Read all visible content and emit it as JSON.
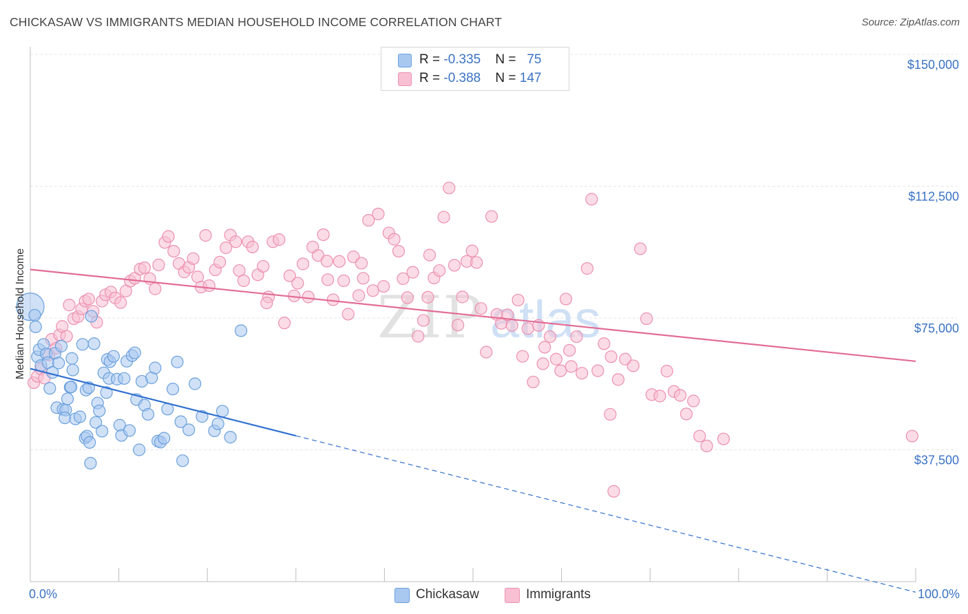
{
  "title": "CHICKASAW VS IMMIGRANTS MEDIAN HOUSEHOLD INCOME CORRELATION CHART",
  "source": "Source: ZipAtlas.com",
  "watermark": {
    "zip": "ZIP",
    "atlas": "atlas"
  },
  "legend": {
    "rows": [
      {
        "r_label": "R = ",
        "r_value": "-0.335",
        "n_label": "N = ",
        "n_value": "75"
      },
      {
        "r_label": "R = ",
        "r_value": "-0.388",
        "n_label": "N = ",
        "n_value": "147"
      }
    ]
  },
  "colors": {
    "chickasaw_fill": "#a9c8f0",
    "chickasaw_stroke": "#6a9fdc",
    "chickasaw_line": "#2f6fcf",
    "immigrants_fill": "#f8c0d2",
    "immigrants_stroke": "#ec8fb0",
    "immigrants_line": "#e26c94",
    "tick": "#3a72c4",
    "grid": "#e4e4e4"
  },
  "chart_data": {
    "type": "scatter",
    "title": "CHICKASAW VS IMMIGRANTS MEDIAN HOUSEHOLD INCOME CORRELATION CHART",
    "ylabel": "Median Household Income",
    "xlabel": "",
    "xlim": [
      0,
      100
    ],
    "ylim": [
      0,
      150000
    ],
    "x_tick_labels": [
      "0.0%",
      "100.0%"
    ],
    "y_ticks": [
      {
        "value": 37500,
        "label": "$37,500"
      },
      {
        "value": 75000,
        "label": "$75,000"
      },
      {
        "value": 112500,
        "label": "$112,500"
      },
      {
        "value": 150000,
        "label": "$150,000"
      }
    ],
    "grid": true,
    "legend_position": "top-center",
    "series": [
      {
        "name": "Chickasaw",
        "r": -0.335,
        "n": 75,
        "trend": {
          "x0": 0,
          "y0": 60600,
          "x1": 30,
          "y1": 41500,
          "dashed_to_x": 100,
          "dashed_to_y": -3000
        },
        "points": [
          [
            0,
            78200
          ],
          [
            0.5,
            75800
          ],
          [
            0.6,
            72500
          ],
          [
            0.8,
            64000
          ],
          [
            1,
            66000
          ],
          [
            1.2,
            61500
          ],
          [
            1.5,
            67500
          ],
          [
            1.8,
            64800
          ],
          [
            2,
            62300
          ],
          [
            2.2,
            55000
          ],
          [
            2.5,
            59500
          ],
          [
            2.8,
            65000
          ],
          [
            3,
            49500
          ],
          [
            3.2,
            62200
          ],
          [
            3.5,
            67000
          ],
          [
            3.7,
            49000
          ],
          [
            4,
            48800
          ],
          [
            4.2,
            52000
          ],
          [
            4.5,
            55300
          ],
          [
            4.7,
            63500
          ],
          [
            3.9,
            46600
          ],
          [
            4.6,
            55400
          ],
          [
            4.8,
            60200
          ],
          [
            5.1,
            46300
          ],
          [
            5.6,
            46900
          ],
          [
            5.9,
            67500
          ],
          [
            6.3,
            54500
          ],
          [
            6.6,
            55200
          ],
          [
            6.9,
            75500
          ],
          [
            7.2,
            67700
          ],
          [
            6.2,
            40900
          ],
          [
            6.4,
            41400
          ],
          [
            6.7,
            39600
          ],
          [
            6.8,
            33700
          ],
          [
            7.4,
            45300
          ],
          [
            7.6,
            50800
          ],
          [
            7.8,
            48600
          ],
          [
            8.1,
            42800
          ],
          [
            8.3,
            59400
          ],
          [
            8.6,
            53800
          ],
          [
            8.9,
            57800
          ],
          [
            8.7,
            63200
          ],
          [
            9,
            62600
          ],
          [
            9.4,
            64100
          ],
          [
            9.8,
            57600
          ],
          [
            10.1,
            44500
          ],
          [
            10.3,
            41600
          ],
          [
            10.6,
            57800
          ],
          [
            10.9,
            62700
          ],
          [
            11.2,
            43000
          ],
          [
            11.5,
            64300
          ],
          [
            11.8,
            65100
          ],
          [
            12,
            51800
          ],
          [
            12.3,
            37500
          ],
          [
            12.6,
            57000
          ],
          [
            12.9,
            50200
          ],
          [
            13.3,
            47600
          ],
          [
            13.7,
            58000
          ],
          [
            14.1,
            60800
          ],
          [
            14.4,
            40000
          ],
          [
            14.7,
            39700
          ],
          [
            15.1,
            40800
          ],
          [
            15.5,
            49100
          ],
          [
            16.1,
            54800
          ],
          [
            16.6,
            62500
          ],
          [
            17,
            45500
          ],
          [
            17.2,
            34400
          ],
          [
            17.9,
            43200
          ],
          [
            18.6,
            56300
          ],
          [
            19.4,
            47000
          ],
          [
            20.8,
            42900
          ],
          [
            21.2,
            44900
          ],
          [
            21.7,
            48500
          ],
          [
            22.6,
            41100
          ],
          [
            23.8,
            71400
          ]
        ]
      },
      {
        "name": "Immigrants",
        "r": -0.388,
        "n": 147,
        "trend": {
          "x0": 0,
          "y0": 88800,
          "x1": 100,
          "y1": 62700
        },
        "points": [
          [
            0.4,
            56600
          ],
          [
            0.8,
            58400
          ],
          [
            1.2,
            60500
          ],
          [
            1.6,
            57900
          ],
          [
            2.1,
            64500
          ],
          [
            2.4,
            68900
          ],
          [
            2.9,
            66400
          ],
          [
            3.3,
            70200
          ],
          [
            3.6,
            72600
          ],
          [
            4.1,
            69800
          ],
          [
            4.4,
            78700
          ],
          [
            4.9,
            74800
          ],
          [
            5.4,
            75400
          ],
          [
            5.8,
            77600
          ],
          [
            6.2,
            79800
          ],
          [
            6.6,
            80400
          ],
          [
            7.1,
            76900
          ],
          [
            7.5,
            73800
          ],
          [
            8.1,
            79800
          ],
          [
            8.5,
            81600
          ],
          [
            9.1,
            82400
          ],
          [
            9.6,
            80700
          ],
          [
            10.2,
            79400
          ],
          [
            10.8,
            82700
          ],
          [
            11.3,
            85500
          ],
          [
            11.8,
            86300
          ],
          [
            12.4,
            88900
          ],
          [
            12.9,
            89300
          ],
          [
            13.5,
            86200
          ],
          [
            14.1,
            83300
          ],
          [
            14.5,
            90100
          ],
          [
            15.2,
            96500
          ],
          [
            15.6,
            98200
          ],
          [
            16.2,
            94000
          ],
          [
            16.8,
            90500
          ],
          [
            17.4,
            88100
          ],
          [
            17.9,
            89400
          ],
          [
            18.4,
            91900
          ],
          [
            18.9,
            86700
          ],
          [
            19.3,
            83800
          ],
          [
            19.8,
            98500
          ],
          [
            20.2,
            84200
          ],
          [
            20.9,
            88700
          ],
          [
            21.4,
            90900
          ],
          [
            22.1,
            95000
          ],
          [
            22.6,
            98600
          ],
          [
            23.2,
            96700
          ],
          [
            23.6,
            88500
          ],
          [
            24.1,
            85600
          ],
          [
            24.6,
            96700
          ],
          [
            25.1,
            95200
          ],
          [
            25.7,
            87300
          ],
          [
            26.3,
            89700
          ],
          [
            26.9,
            81000
          ],
          [
            27.4,
            96700
          ],
          [
            28.1,
            97300
          ],
          [
            28.7,
            73600
          ],
          [
            29.3,
            87000
          ],
          [
            29.8,
            81300
          ],
          [
            30.2,
            84900
          ],
          [
            30.8,
            90400
          ],
          [
            31.4,
            81000
          ],
          [
            31.9,
            95200
          ],
          [
            32.5,
            92800
          ],
          [
            33.1,
            98700
          ],
          [
            33.6,
            85900
          ],
          [
            34.2,
            80200
          ],
          [
            34.9,
            91100
          ],
          [
            35.4,
            85600
          ],
          [
            35.9,
            76100
          ],
          [
            36.5,
            92400
          ],
          [
            37.1,
            81400
          ],
          [
            37.6,
            86300
          ],
          [
            38.2,
            102800
          ],
          [
            38.7,
            82800
          ],
          [
            39.3,
            104600
          ],
          [
            39.9,
            84000
          ],
          [
            40.5,
            99200
          ],
          [
            41.1,
            97400
          ],
          [
            41.6,
            94000
          ],
          [
            42.1,
            86200
          ],
          [
            42.6,
            80800
          ],
          [
            43.2,
            88000
          ],
          [
            43.8,
            69800
          ],
          [
            44.4,
            74300
          ],
          [
            45.1,
            92900
          ],
          [
            45.6,
            86400
          ],
          [
            46.2,
            88500
          ],
          [
            46.7,
            103700
          ],
          [
            47.3,
            112000
          ],
          [
            47.9,
            90000
          ],
          [
            48.3,
            73000
          ],
          [
            48.8,
            81000
          ],
          [
            49.3,
            91100
          ],
          [
            49.9,
            94100
          ],
          [
            50.4,
            90800
          ],
          [
            50.9,
            77700
          ],
          [
            51.5,
            65300
          ],
          [
            52.1,
            103900
          ],
          [
            52.7,
            76000
          ],
          [
            53.2,
            73500
          ],
          [
            53.9,
            75900
          ],
          [
            54.4,
            72900
          ],
          [
            55.1,
            80100
          ],
          [
            55.6,
            64100
          ],
          [
            56.2,
            72000
          ],
          [
            56.8,
            56800
          ],
          [
            57.4,
            72900
          ],
          [
            58.1,
            66700
          ],
          [
            58.7,
            69700
          ],
          [
            59.4,
            63300
          ],
          [
            59.9,
            60000
          ],
          [
            60.5,
            80400
          ],
          [
            61.1,
            61200
          ],
          [
            61.7,
            69700
          ],
          [
            62.3,
            59300
          ],
          [
            62.9,
            89100
          ],
          [
            63.4,
            108800
          ],
          [
            64.1,
            60000
          ],
          [
            64.8,
            67700
          ],
          [
            65.6,
            64000
          ],
          [
            66.4,
            57500
          ],
          [
            67.2,
            63300
          ],
          [
            68.1,
            61400
          ],
          [
            68.9,
            94700
          ],
          [
            69.6,
            74800
          ],
          [
            70.2,
            53200
          ],
          [
            71.1,
            52800
          ],
          [
            71.9,
            59900
          ],
          [
            72.7,
            54100
          ],
          [
            73.4,
            53000
          ],
          [
            74.1,
            47700
          ],
          [
            74.9,
            51400
          ],
          [
            75.6,
            41400
          ],
          [
            76.4,
            38600
          ],
          [
            78.3,
            40600
          ],
          [
            65.5,
            47600
          ],
          [
            33.5,
            91200
          ],
          [
            44.9,
            80900
          ],
          [
            60.9,
            65800
          ],
          [
            37.4,
            90600
          ],
          [
            26.7,
            79300
          ],
          [
            57.9,
            62000
          ],
          [
            65.9,
            25700
          ],
          [
            99.6,
            41400
          ]
        ]
      }
    ]
  },
  "bottom_legend": {
    "chickasaw": "Chickasaw",
    "immigrants": "Immigrants"
  }
}
